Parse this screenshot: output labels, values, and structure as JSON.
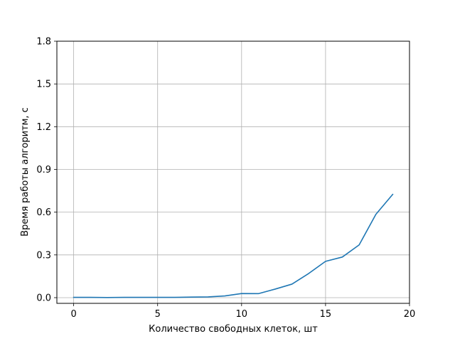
{
  "chart_data": {
    "type": "line",
    "title": "",
    "xlabel": "Количество свободных клеток, шт",
    "ylabel": "Время работы алгоритм, с",
    "xlim": [
      -1,
      20
    ],
    "ylim": [
      -0.04,
      1.8
    ],
    "xticks": [
      0,
      5,
      10,
      15,
      20
    ],
    "xtick_labels": [
      "0",
      "5",
      "10",
      "15",
      "20"
    ],
    "yticks": [
      0.0,
      0.3,
      0.6,
      0.9,
      1.2,
      1.5,
      1.8
    ],
    "ytick_labels": [
      "0.0",
      "0.3",
      "0.6",
      "0.9",
      "1.2",
      "1.5",
      "1.8"
    ],
    "grid": true,
    "legend": "none",
    "series": [
      {
        "color": "#1f77b4",
        "x": [
          0,
          1,
          2,
          3,
          4,
          5,
          6,
          7,
          8,
          9,
          10,
          11,
          12,
          13,
          14,
          15,
          16,
          17,
          18,
          19
        ],
        "y": [
          0.002,
          0.002,
          0.001,
          0.002,
          0.002,
          0.002,
          0.002,
          0.004,
          0.005,
          0.012,
          0.029,
          0.028,
          0.06,
          0.095,
          0.17,
          0.255,
          0.285,
          0.37,
          0.585,
          0.725
        ]
      }
    ]
  }
}
